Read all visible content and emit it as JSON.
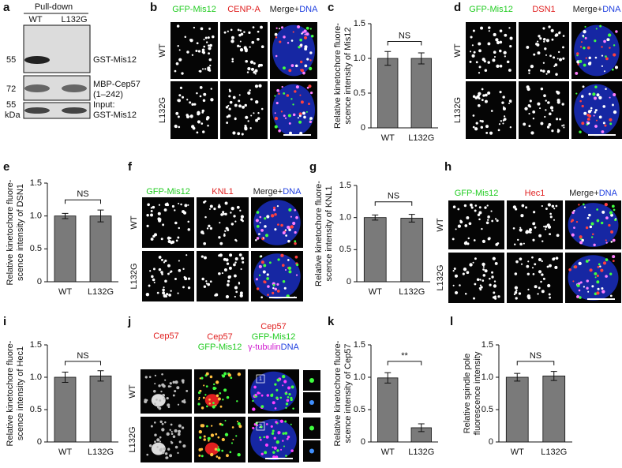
{
  "panel_letters": [
    "a",
    "b",
    "c",
    "d",
    "e",
    "f",
    "g",
    "h",
    "i",
    "j",
    "k",
    "l"
  ],
  "blot": {
    "header": "Pull-down",
    "lanes": [
      "WT",
      "L132G"
    ],
    "markers": [
      "55",
      "72",
      "55"
    ],
    "unit": "kDa",
    "labels": [
      "GST-Mis12",
      "MBP-Cep57",
      "(1–242)",
      "Input:",
      "GST-Mis12"
    ]
  },
  "images": [
    {
      "columns": [
        [
          [
            {
              "text": "GFP-Mis12",
              "color": "#22cc22"
            }
          ]
        ],
        [
          [
            {
              "text": "CENP-A",
              "color": "#e02020"
            }
          ]
        ],
        [
          [
            {
              "text": "Merge+",
              "color": "#222222"
            },
            {
              "text": "DNA",
              "color": "#2040e0"
            }
          ]
        ]
      ],
      "rows": [
        "WT",
        "L132G"
      ]
    },
    {
      "columns": [
        [
          [
            {
              "text": "GFP-Mis12",
              "color": "#22cc22"
            }
          ]
        ],
        [
          [
            {
              "text": "DSN1",
              "color": "#e02020"
            }
          ]
        ],
        [
          [
            {
              "text": "Merge+",
              "color": "#222222"
            },
            {
              "text": "DNA",
              "color": "#2040e0"
            }
          ]
        ]
      ],
      "rows": [
        "WT",
        "L132G"
      ]
    },
    {
      "columns": [
        [
          [
            {
              "text": "GFP-Mis12",
              "color": "#22cc22"
            }
          ]
        ],
        [
          [
            {
              "text": "KNL1",
              "color": "#e02020"
            }
          ]
        ],
        [
          [
            {
              "text": "Merge+",
              "color": "#222222"
            },
            {
              "text": "DNA",
              "color": "#2040e0"
            }
          ]
        ]
      ],
      "rows": [
        "WT",
        "L132G"
      ]
    },
    {
      "columns": [
        [
          [
            {
              "text": "GFP-Mis12",
              "color": "#22cc22"
            }
          ]
        ],
        [
          [
            {
              "text": "Hec1",
              "color": "#e02020"
            }
          ]
        ],
        [
          [
            {
              "text": "Merge+",
              "color": "#222222"
            },
            {
              "text": "DNA",
              "color": "#2040e0"
            }
          ]
        ]
      ],
      "rows": [
        "WT",
        "L132G"
      ]
    },
    {
      "columns": [
        [
          [
            {
              "text": "Cep57",
              "color": "#e02020"
            }
          ]
        ],
        [
          [
            {
              "text": "Cep57",
              "color": "#e02020"
            }
          ],
          [
            {
              "text": "GFP-Mis12",
              "color": "#22cc22"
            }
          ]
        ],
        [
          [
            {
              "text": "Cep57",
              "color": "#e02020"
            }
          ],
          [
            {
              "text": "GFP-Mis12",
              "color": "#22cc22"
            }
          ],
          [
            {
              "text": "γ-tubulin",
              "color": "#d020d0"
            },
            {
              "text": "DNA",
              "color": "#2040e0"
            }
          ]
        ]
      ],
      "rows": [
        "WT",
        "L132G"
      ],
      "insets": [
        "1",
        "2"
      ]
    }
  ],
  "chart_data": [
    {
      "type": "bar",
      "ylabel": [
        "Relative kinetochore fluore-",
        "scence intensity of Mis12"
      ],
      "categories": [
        "WT",
        "L132G"
      ],
      "values": [
        1.0,
        1.0
      ],
      "errors": [
        0.1,
        0.08
      ],
      "color": "#7a7a7a",
      "ylim": [
        0,
        1.5
      ],
      "yticks": [
        0,
        0.5,
        {
          "value": 1,
          "label": "1.0"
        },
        1.5
      ],
      "annotation": "NS"
    },
    {
      "type": "bar",
      "ylabel": [
        "Relative kinetochore fluore-",
        "scence intensity of DSN1"
      ],
      "categories": [
        "WT",
        "L132G"
      ],
      "values": [
        1.0,
        1.0
      ],
      "errors": [
        0.04,
        0.09
      ],
      "color": "#7a7a7a",
      "ylim": [
        0,
        1.5
      ],
      "yticks": [
        0,
        0.5,
        {
          "value": 1,
          "label": "1.0"
        },
        1.5
      ],
      "annotation": "NS"
    },
    {
      "type": "bar",
      "ylabel": [
        "Relative kinetochore fluore-",
        "scence intensity of KNL1"
      ],
      "categories": [
        "WT",
        "L132G"
      ],
      "values": [
        1.0,
        0.99
      ],
      "errors": [
        0.04,
        0.06
      ],
      "color": "#7a7a7a",
      "ylim": [
        0,
        1.5
      ],
      "yticks": [
        0,
        0.5,
        {
          "value": 1,
          "label": "1.0"
        },
        1.5
      ],
      "annotation": "NS"
    },
    {
      "type": "bar",
      "ylabel": [
        "Relative kinetochore fluore-",
        "scence intensity of Hec1"
      ],
      "categories": [
        "WT",
        "L132G"
      ],
      "values": [
        1.0,
        1.02
      ],
      "errors": [
        0.08,
        0.08
      ],
      "color": "#7a7a7a",
      "ylim": [
        0,
        1.5
      ],
      "yticks": [
        0,
        0.5,
        {
          "value": 1,
          "label": "1.0"
        },
        1.5
      ],
      "annotation": "NS"
    },
    {
      "type": "bar",
      "ylabel": [
        "Relative kinetochore fluore-",
        "scence intensity of Cep57"
      ],
      "categories": [
        "WT",
        "L132G"
      ],
      "values": [
        0.99,
        0.22
      ],
      "errors": [
        0.08,
        0.06
      ],
      "color": "#7a7a7a",
      "ylim": [
        0,
        1.5
      ],
      "yticks": [
        0,
        0.5,
        {
          "value": 1,
          "label": "1.0"
        },
        1.5
      ],
      "annotation": "**"
    },
    {
      "type": "bar",
      "ylabel": [
        "Relative spindle pole",
        "fluorescence intensity"
      ],
      "categories": [
        "WT",
        "L132G"
      ],
      "values": [
        1.0,
        1.02
      ],
      "errors": [
        0.06,
        0.07
      ],
      "color": "#7a7a7a",
      "ylim": [
        0,
        1.5
      ],
      "yticks": [
        0,
        0.5,
        {
          "value": 1,
          "label": "1.0"
        },
        1.5
      ],
      "annotation": "NS"
    }
  ]
}
